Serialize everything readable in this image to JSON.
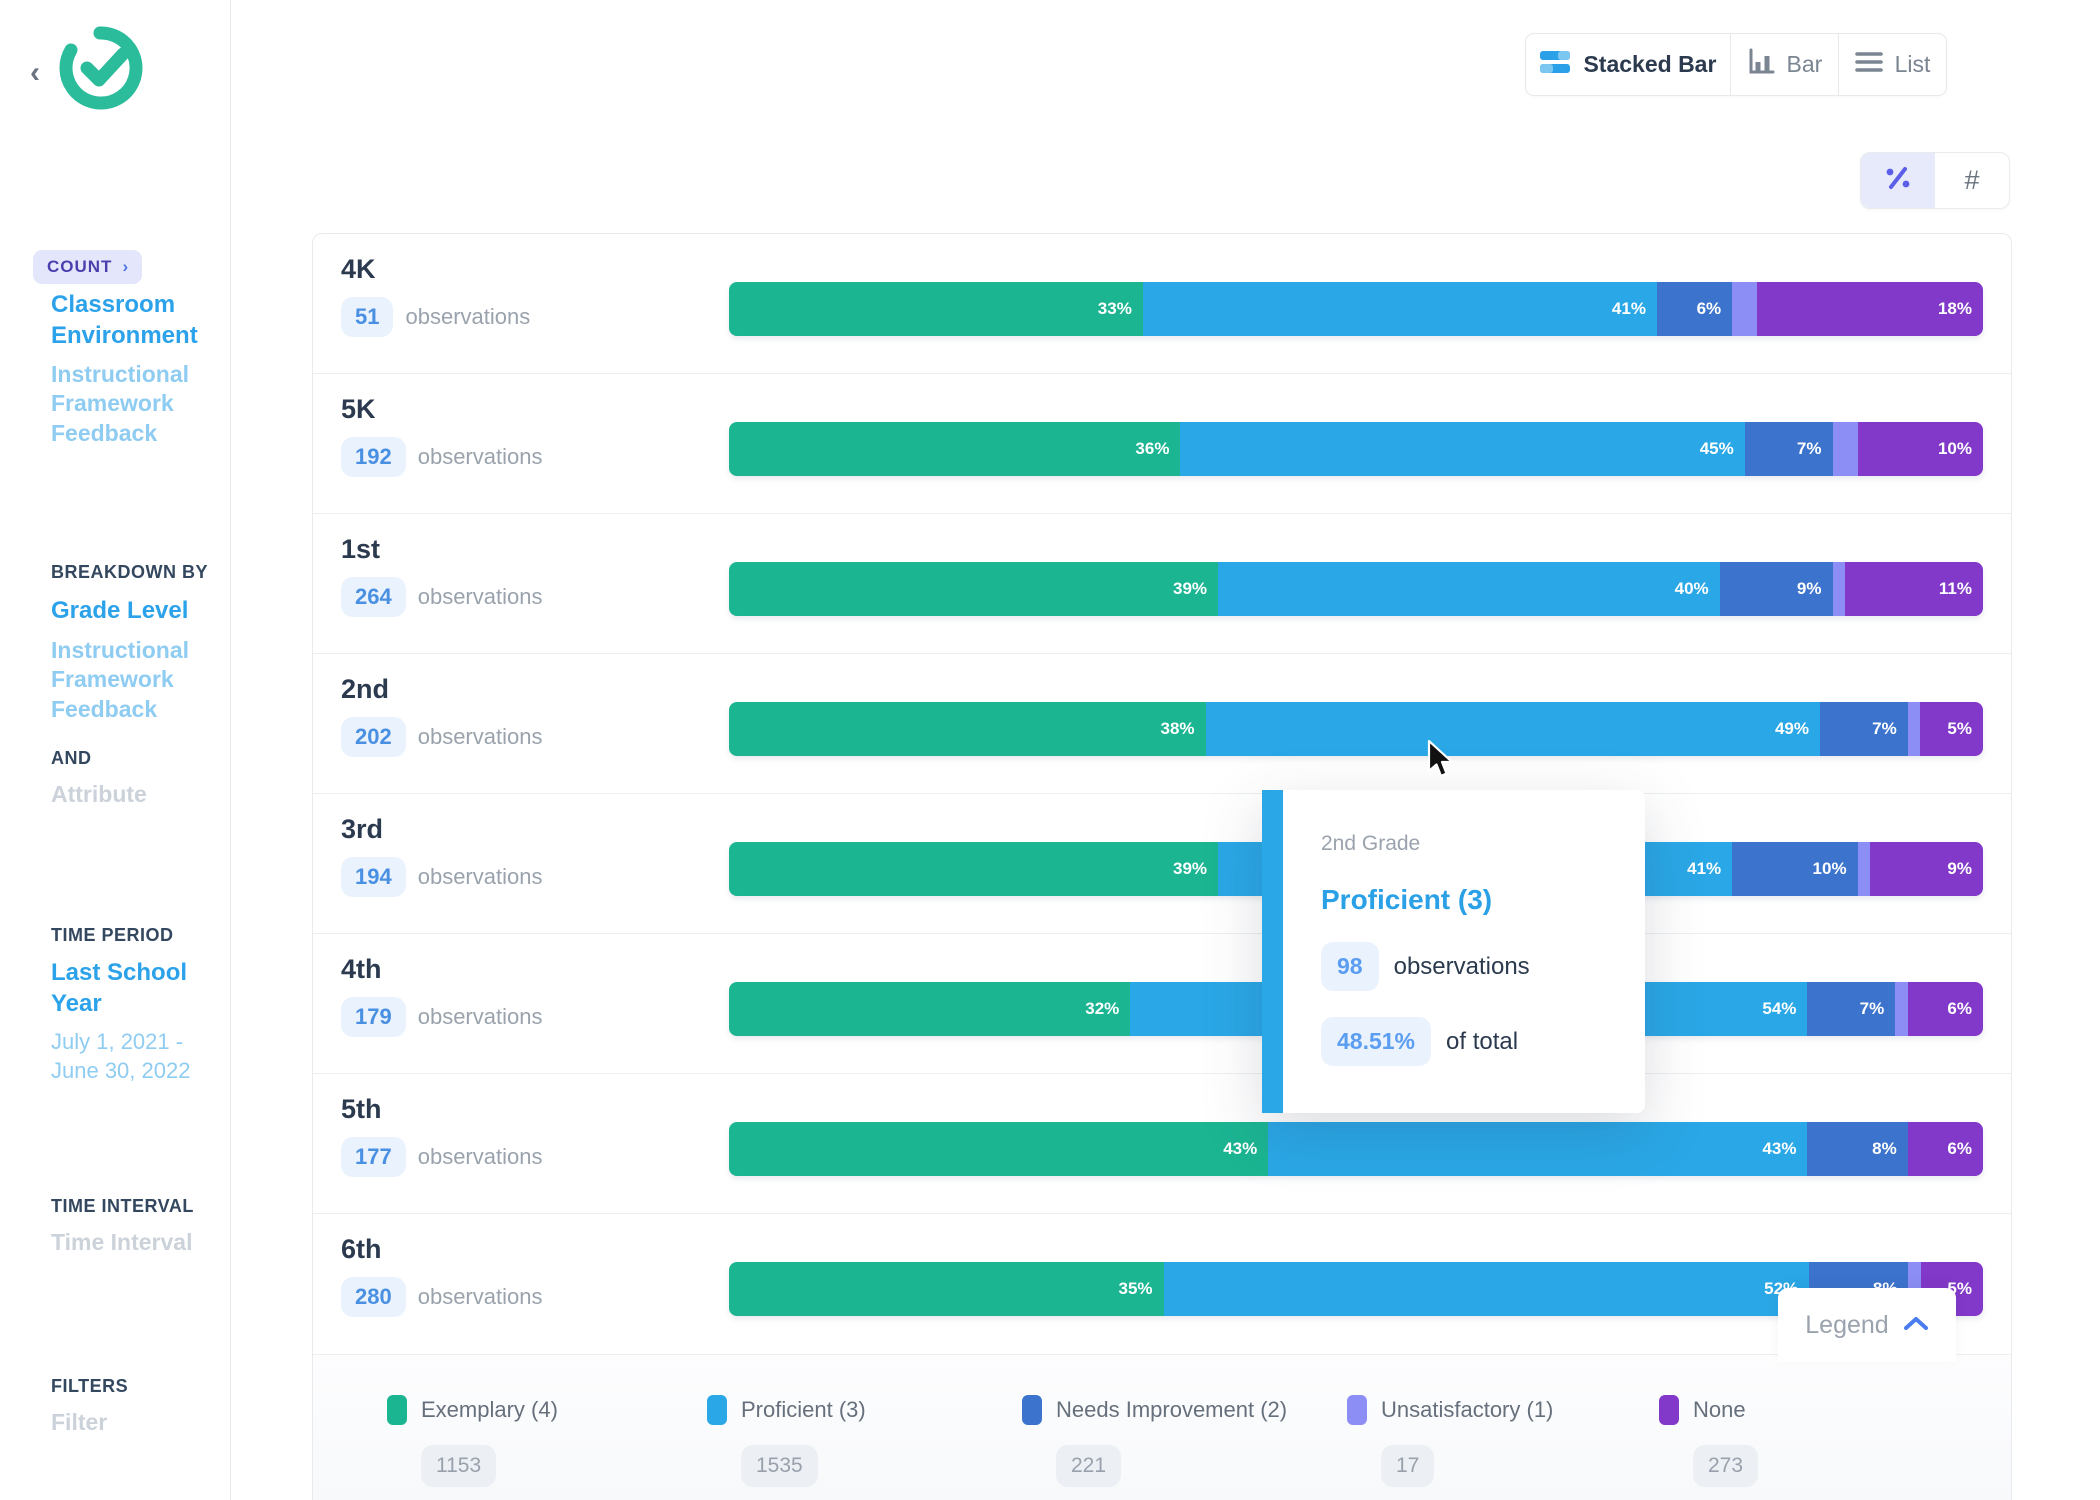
{
  "sidebar": {
    "count_badge": {
      "label": "COUNT"
    },
    "measure_active": "Classroom Environment",
    "measure_inactive": "Instructional Framework Feedback",
    "breakdown_heading": "BREAKDOWN BY",
    "breakdown_active": "Grade Level",
    "breakdown_inactive": "Instructional Framework Feedback",
    "and_label": "AND",
    "attribute_label": "Attribute",
    "time_period_heading": "TIME PERIOD",
    "time_period_selected": "Last School Year",
    "time_period_range": "July 1, 2021 - June 30, 2022",
    "time_interval_heading": "TIME INTERVAL",
    "time_interval_placeholder": "Time Interval",
    "filters_heading": "FILTERS",
    "filters_placeholder": "Filter"
  },
  "toolbar": {
    "stacked_label": "Stacked Bar",
    "bar_label": "Bar",
    "list_label": "List",
    "active_view": "Stacked Bar"
  },
  "unit_toggle": {
    "percent_active": true,
    "hash_label": "#"
  },
  "chart_data": {
    "type": "bar",
    "stacked": true,
    "orientation": "horizontal",
    "unit": "percent",
    "observations_label": "observations",
    "series": [
      {
        "name": "Exemplary (4)",
        "color": "#1bb592",
        "total": 1153
      },
      {
        "name": "Proficient (3)",
        "color": "#2aa7e6",
        "total": 1535
      },
      {
        "name": "Needs Improvement (2)",
        "color": "#3c73cc",
        "total": 221
      },
      {
        "name": "Unsatisfactory (1)",
        "color": "#8c8df5",
        "total": 17
      },
      {
        "name": "None",
        "color": "#8238c8",
        "total": 273
      }
    ],
    "rows": [
      {
        "grade": "4K",
        "observations": 51,
        "values_pct": [
          33,
          41,
          6,
          2,
          18
        ]
      },
      {
        "grade": "5K",
        "observations": 192,
        "values_pct": [
          36,
          45,
          7,
          2,
          10
        ]
      },
      {
        "grade": "1st",
        "observations": 264,
        "values_pct": [
          39,
          40,
          9,
          1,
          11
        ]
      },
      {
        "grade": "2nd",
        "observations": 202,
        "values_pct": [
          38,
          49,
          7,
          1,
          5
        ]
      },
      {
        "grade": "3rd",
        "observations": 194,
        "values_pct": [
          39,
          41,
          10,
          1,
          9
        ]
      },
      {
        "grade": "4th",
        "observations": 179,
        "values_pct": [
          32,
          54,
          7,
          1,
          6
        ]
      },
      {
        "grade": "5th",
        "observations": 177,
        "values_pct": [
          43,
          43,
          8,
          0,
          6
        ]
      },
      {
        "grade": "6th",
        "observations": 280,
        "values_pct": [
          35,
          52,
          8,
          1,
          5
        ]
      }
    ],
    "label_threshold_pct": 5
  },
  "tooltip": {
    "context": "2nd Grade",
    "series": "Proficient (3)",
    "observations": "98",
    "observations_label": "observations",
    "share": "48.51%",
    "share_label": "of total"
  },
  "legend": {
    "button_label": "Legend"
  }
}
